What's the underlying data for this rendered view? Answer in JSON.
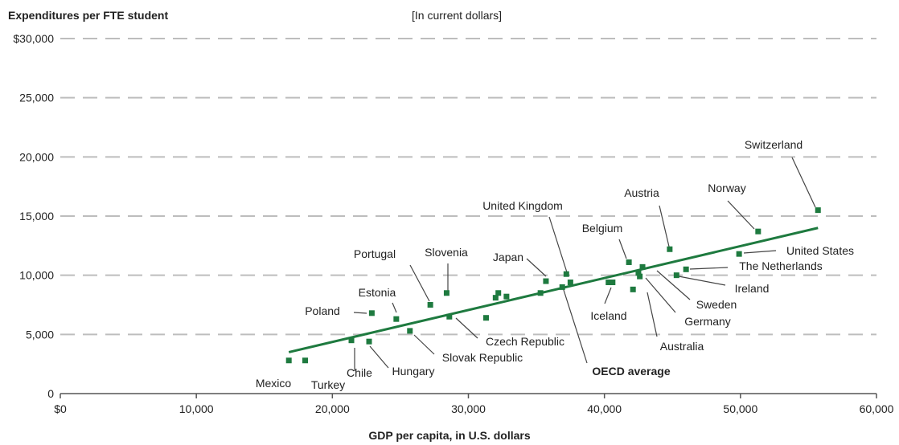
{
  "chart_data": {
    "type": "scatter",
    "title": "",
    "subtitle": "[In current dollars]",
    "ylabel": "Expenditures per FTE student",
    "xlabel": "GDP per capita, in U.S. dollars",
    "xlim": [
      0,
      60000
    ],
    "ylim": [
      0,
      30000
    ],
    "x_ticks": [
      0,
      10000,
      20000,
      30000,
      40000,
      50000,
      60000
    ],
    "x_tick_labels": [
      "$0",
      "10,000",
      "20,000",
      "30,000",
      "40,000",
      "50,000",
      "60,000"
    ],
    "y_ticks": [
      0,
      5000,
      10000,
      15000,
      20000,
      25000,
      30000
    ],
    "y_tick_labels": [
      "0",
      "5,000",
      "10,000",
      "15,000",
      "20,000",
      "25,000",
      "$30,000"
    ],
    "grid": "horizontal dashed",
    "colors": {
      "points": "#1e7a3f",
      "trend": "#1e7a3f",
      "grid": "#bdbdbd",
      "leader": "#444444"
    },
    "trend_line": {
      "x": [
        16800,
        55700
      ],
      "y": [
        3500,
        14000
      ]
    },
    "points": [
      {
        "label": "Mexico",
        "x": 16800,
        "y": 2800
      },
      {
        "label": "Turkey",
        "x": 18000,
        "y": 2800
      },
      {
        "label": "Chile",
        "x": 21400,
        "y": 4500
      },
      {
        "label": "Hungary",
        "x": 22700,
        "y": 4400
      },
      {
        "label": "Poland",
        "x": 22900,
        "y": 6800
      },
      {
        "label": "Estonia",
        "x": 24700,
        "y": 6300
      },
      {
        "label": "Slovak Republic",
        "x": 25700,
        "y": 5300
      },
      {
        "label": "Portugal",
        "x": 27200,
        "y": 7500
      },
      {
        "label": "Slovenia",
        "x": 28400,
        "y": 8500
      },
      {
        "label": "Czech Republic",
        "x": 28600,
        "y": 6500
      },
      {
        "label": "",
        "x": 31300,
        "y": 6400
      },
      {
        "label": "",
        "x": 32000,
        "y": 8100
      },
      {
        "label": "",
        "x": 32200,
        "y": 8500
      },
      {
        "label": "",
        "x": 32800,
        "y": 8200
      },
      {
        "label": "",
        "x": 35300,
        "y": 8500
      },
      {
        "label": "Japan",
        "x": 35700,
        "y": 9500
      },
      {
        "label": "OECD average",
        "x": 36900,
        "y": 9000
      },
      {
        "label": "United Kingdom",
        "x": 37200,
        "y": 10100
      },
      {
        "label": "",
        "x": 37500,
        "y": 9400
      },
      {
        "label": "Iceland",
        "x": 40300,
        "y": 9400
      },
      {
        "label": "",
        "x": 40600,
        "y": 9400
      },
      {
        "label": "Belgium",
        "x": 41800,
        "y": 11100
      },
      {
        "label": "Australia",
        "x": 42100,
        "y": 8800
      },
      {
        "label": "Germany",
        "x": 42500,
        "y": 10200
      },
      {
        "label": "Sweden",
        "x": 42800,
        "y": 10700
      },
      {
        "label": "",
        "x": 42600,
        "y": 9900
      },
      {
        "label": "Austria",
        "x": 44800,
        "y": 12200
      },
      {
        "label": "The Netherlands",
        "x": 46000,
        "y": 10500
      },
      {
        "label": "Ireland",
        "x": 45300,
        "y": 10000
      },
      {
        "label": "United States",
        "x": 49900,
        "y": 11800
      },
      {
        "label": "Norway",
        "x": 51300,
        "y": 13700
      },
      {
        "label": "Switzerland",
        "x": 55700,
        "y": 15500
      }
    ],
    "annotations": [
      {
        "text": "Mexico",
        "tx": 340,
        "ty": 482,
        "bold": false,
        "from": null,
        "to": null
      },
      {
        "text": "Turkey",
        "tx": 408,
        "ty": 484,
        "bold": false,
        "from": null,
        "to": null
      },
      {
        "text": "Chile",
        "tx": 447,
        "ty": 469,
        "bold": false,
        "from": [
          441,
          462
        ],
        "to": [
          441,
          433
        ]
      },
      {
        "text": "Hungary",
        "tx": 514,
        "ty": 467,
        "bold": false,
        "from": [
          483,
          458
        ],
        "to": [
          460,
          431
        ]
      },
      {
        "text": "Slovak Republic",
        "tx": 600,
        "ty": 450,
        "bold": false,
        "from": [
          540,
          441
        ],
        "to": [
          515,
          417
        ]
      },
      {
        "text": "Czech Republic",
        "tx": 653,
        "ty": 430,
        "bold": false,
        "from": [
          594,
          421
        ],
        "to": [
          567,
          396
        ]
      },
      {
        "text": "OECD average",
        "tx": 785,
        "ty": 467,
        "bold": true,
        "from": [
          730,
          452
        ],
        "to": [
          700,
          358
        ]
      },
      {
        "text": "Poland",
        "tx": 401,
        "ty": 392,
        "bold": false,
        "from": [
          440,
          389
        ],
        "to": [
          456,
          390
        ]
      },
      {
        "text": "Estonia",
        "tx": 469,
        "ty": 369,
        "bold": false,
        "from": [
          488,
          377
        ],
        "to": [
          493,
          389
        ]
      },
      {
        "text": "Portugal",
        "tx": 466,
        "ty": 321,
        "bold": false,
        "from": [
          510,
          330
        ],
        "to": [
          534,
          375
        ]
      },
      {
        "text": "Slovenia",
        "tx": 555,
        "ty": 319,
        "bold": false,
        "from": [
          557,
          328
        ],
        "to": [
          557,
          362
        ]
      },
      {
        "text": "Japan",
        "tx": 632,
        "ty": 325,
        "bold": false,
        "from": [
          655,
          322
        ],
        "to": [
          679,
          344
        ]
      },
      {
        "text": "United Kingdom",
        "tx": 650,
        "ty": 261,
        "bold": false,
        "from": [
          683,
          270
        ],
        "to": [
          705,
          339
        ]
      },
      {
        "text": "Iceland",
        "tx": 757,
        "ty": 398,
        "bold": false,
        "from": [
          752,
          378
        ],
        "to": [
          760,
          358
        ]
      },
      {
        "text": "Belgium",
        "tx": 749,
        "ty": 289,
        "bold": false,
        "from": [
          770,
          298
        ],
        "to": [
          779,
          322
        ]
      },
      {
        "text": "Austria",
        "tx": 798,
        "ty": 245,
        "bold": false,
        "from": [
          820,
          256
        ],
        "to": [
          832,
          307
        ]
      },
      {
        "text": "Australia",
        "tx": 848,
        "ty": 436,
        "bold": false,
        "from": [
          817,
          419
        ],
        "to": [
          805,
          364
        ]
      },
      {
        "text": "Germany",
        "tx": 880,
        "ty": 405,
        "bold": false,
        "from": [
          840,
          389
        ],
        "to": [
          803,
          346
        ]
      },
      {
        "text": "Sweden",
        "tx": 891,
        "ty": 384,
        "bold": false,
        "from": [
          858,
          373
        ],
        "to": [
          817,
          337
        ]
      },
      {
        "text": "Ireland",
        "tx": 935,
        "ty": 364,
        "bold": false,
        "from": [
          902,
          355
        ],
        "to": [
          844,
          344
        ]
      },
      {
        "text": "The Netherlands",
        "tx": 971,
        "ty": 336,
        "bold": false,
        "from": [
          905,
          333
        ],
        "to": [
          858,
          335
        ]
      },
      {
        "text": "United States",
        "tx": 1020,
        "ty": 317,
        "bold": false,
        "from": [
          965,
          312
        ],
        "to": [
          925,
          315
        ]
      },
      {
        "text": "Norway",
        "tx": 904,
        "ty": 239,
        "bold": false,
        "from": [
          905,
          250
        ],
        "to": [
          938,
          285
        ]
      },
      {
        "text": "Switzerland",
        "tx": 962,
        "ty": 185,
        "bold": false,
        "from": [
          985,
          196
        ],
        "to": [
          1014,
          258
        ]
      }
    ]
  }
}
